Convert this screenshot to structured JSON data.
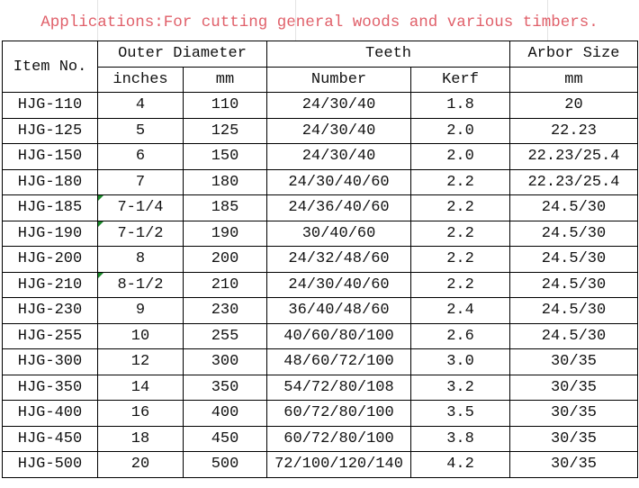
{
  "title": "Applications:For cutting general woods and various timbers.",
  "headers": {
    "item_no": "Item No.",
    "outer_diameter": "Outer Diameter",
    "inches": "inches",
    "mm": "mm",
    "teeth": "Teeth",
    "number": "Number",
    "kerf": "Kerf",
    "arbor_size": "Arbor Size",
    "arbor_unit": "mm"
  },
  "rows": [
    [
      "HJG-110",
      "4",
      "110",
      "24/30/40",
      "1.8",
      "20"
    ],
    [
      "HJG-125",
      "5",
      "125",
      "24/30/40",
      "2.0",
      "22.23"
    ],
    [
      "HJG-150",
      "6",
      "150",
      "24/30/40",
      "2.0",
      "22.23/25.4"
    ],
    [
      "HJG-180",
      "7",
      "180",
      "24/30/40/60",
      "2.2",
      "22.23/25.4"
    ],
    [
      "HJG-185",
      "7-1/4",
      "185",
      "24/36/40/60",
      "2.2",
      "24.5/30"
    ],
    [
      "HJG-190",
      "7-1/2",
      "190",
      "30/40/60",
      "2.2",
      "24.5/30"
    ],
    [
      "HJG-200",
      "8",
      "200",
      "24/32/48/60",
      "2.2",
      "24.5/30"
    ],
    [
      "HJG-210",
      "8-1/2",
      "210",
      "24/30/40/60",
      "2.2",
      "24.5/30"
    ],
    [
      "HJG-230",
      "9",
      "230",
      "36/40/48/60",
      "2.4",
      "24.5/30"
    ],
    [
      "HJG-255",
      "10",
      "255",
      "40/60/80/100",
      "2.6",
      "24.5/30"
    ],
    [
      "HJG-300",
      "12",
      "300",
      "48/60/72/100",
      "3.0",
      "30/35"
    ],
    [
      "HJG-350",
      "14",
      "350",
      "54/72/80/108",
      "3.2",
      "30/35"
    ],
    [
      "HJG-400",
      "16",
      "400",
      "60/72/80/100",
      "3.5",
      "30/35"
    ],
    [
      "HJG-450",
      "18",
      "450",
      "60/72/80/100",
      "3.8",
      "30/35"
    ],
    [
      "HJG-500",
      "20",
      "500",
      "72/100/120/140",
      "4.2",
      "30/35"
    ]
  ],
  "colors": {
    "title": "#e0606a",
    "text_number_marker": "#1a8a2a"
  }
}
